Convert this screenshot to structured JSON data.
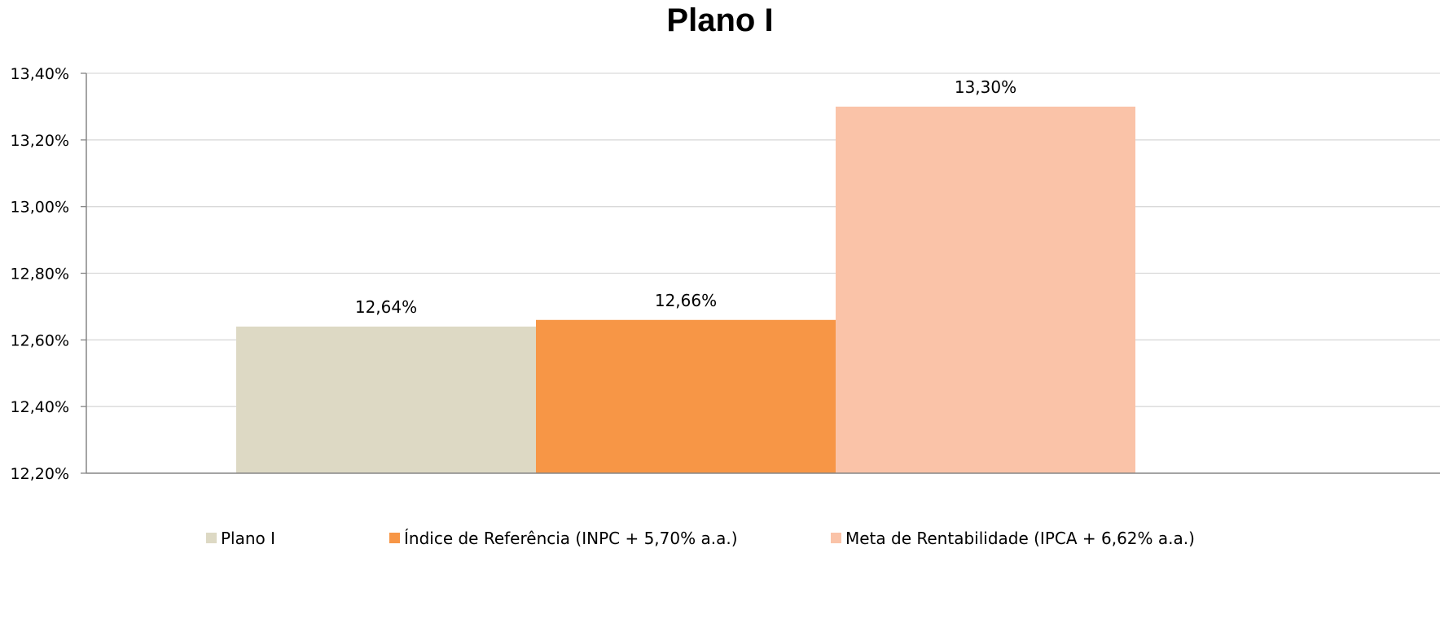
{
  "chart_data": {
    "type": "bar",
    "title": "Plano I",
    "xlabel": "",
    "ylabel": "",
    "ylim": [
      12.2,
      13.4
    ],
    "ytick_values": [
      12.2,
      12.4,
      12.6,
      12.8,
      13.0,
      13.2,
      13.4
    ],
    "ytick_labels": [
      "12,20%",
      "12,40%",
      "12,60%",
      "12,80%",
      "13,00%",
      "13,20%",
      "13,40%"
    ],
    "grid": true,
    "legend_position": "bottom",
    "series": [
      {
        "name": "Plano I",
        "value": 12.64,
        "label": "12,64%",
        "color": "#DDD9C4"
      },
      {
        "name": "Índice de Referência (INPC + 5,70% a.a.)",
        "value": 12.66,
        "label": "12,66%",
        "color": "#F79646"
      },
      {
        "name": "Meta de Rentabilidade (IPCA + 6,62% a.a.)",
        "value": 13.3,
        "label": "13,30%",
        "color": "#FAC3A8"
      }
    ],
    "gridline_color": "#D9D9D9",
    "axis_color": "#868686"
  }
}
